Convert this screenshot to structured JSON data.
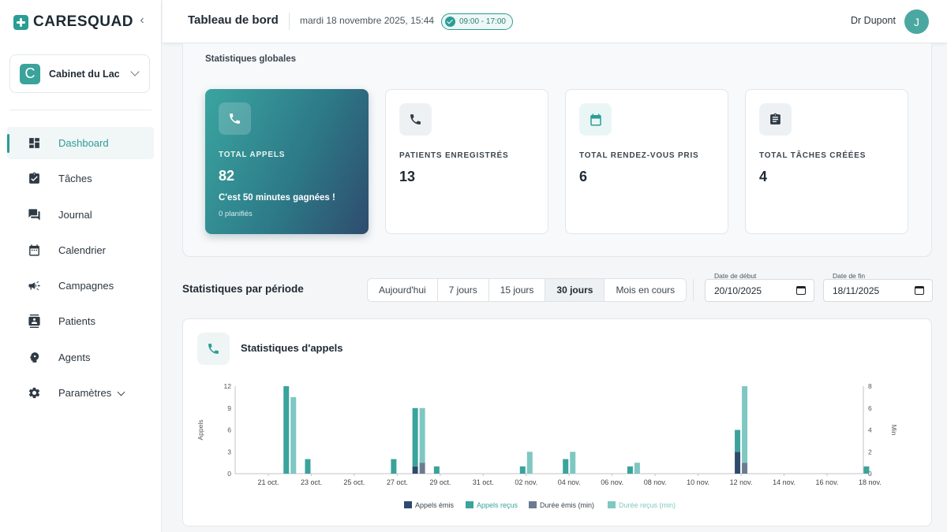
{
  "sidebar": {
    "brand": "CARESQUAD",
    "clinic": {
      "initial": "C",
      "name": "Cabinet du Lac"
    },
    "items": [
      {
        "label": "Dashboard",
        "icon": "dashboard-icon",
        "active": true
      },
      {
        "label": "Tâches",
        "icon": "task-clipboard-icon"
      },
      {
        "label": "Journal",
        "icon": "chat-icon"
      },
      {
        "label": "Calendrier",
        "icon": "calendar-icon"
      },
      {
        "label": "Campagnes",
        "icon": "megaphone-icon"
      },
      {
        "label": "Patients",
        "icon": "contact-card-icon"
      },
      {
        "label": "Agents",
        "icon": "agent-head-icon"
      },
      {
        "label": "Paramètres",
        "icon": "gear-icon"
      }
    ]
  },
  "header": {
    "title": "Tableau de bord",
    "datetime": "mardi 18 novembre 2025, 15:44",
    "hours": "09:00 - 17:00",
    "user": "Dr Dupont",
    "avatar_initial": "J"
  },
  "global_stats": {
    "title": "Statistiques globales",
    "cards": [
      {
        "label": "TOTAL APPELS",
        "value": "82",
        "note": "C'est 50 minutes gagnées !",
        "sub": "0 planifiés",
        "icon": "phone-icon"
      },
      {
        "label": "PATIENTS ENREGISTRÉS",
        "value": "13",
        "icon": "phone-icon"
      },
      {
        "label": "TOTAL RENDEZ-VOUS PRIS",
        "value": "6",
        "icon": "calendar-icon"
      },
      {
        "label": "TOTAL TÂCHES CRÉÉES",
        "value": "4",
        "icon": "clipboard-icon"
      }
    ]
  },
  "period": {
    "title": "Statistiques par période",
    "options": [
      "Aujourd'hui",
      "7 jours",
      "15 jours",
      "30 jours",
      "Mois en cours"
    ],
    "selected": "30 jours",
    "start": {
      "label": "Date de début",
      "value": "20/10/2025"
    },
    "end": {
      "label": "Date de fin",
      "value": "18/11/2025"
    }
  },
  "colors": {
    "accent": "#2a9d96",
    "emis": "#2e4a6e",
    "recus": "#3aa39b",
    "duree_emis": "#6b7b90",
    "duree_recus": "#7fc7c2"
  },
  "chart_data": {
    "type": "bar",
    "title": "Statistiques d'appels",
    "ylabel": "Appels",
    "y2label": "Min",
    "ylim": [
      0,
      12
    ],
    "y2lim": [
      0,
      8
    ],
    "yticks": [
      0,
      3,
      6,
      9,
      12
    ],
    "y2ticks": [
      0,
      2,
      4,
      6,
      8
    ],
    "categories": [
      "21 oct.",
      "22 oct.",
      "23 oct.",
      "24 oct.",
      "25 oct.",
      "26 oct.",
      "27 oct.",
      "28 oct.",
      "29 oct.",
      "30 oct.",
      "31 oct.",
      "01 nov.",
      "02 nov.",
      "03 nov.",
      "04 nov.",
      "05 nov.",
      "06 nov.",
      "07 nov.",
      "08 nov.",
      "09 nov.",
      "10 nov.",
      "11 nov.",
      "12 nov.",
      "13 nov.",
      "14 nov.",
      "15 nov.",
      "16 nov.",
      "17 nov.",
      "18 nov."
    ],
    "tick_labels": [
      "21 oct.",
      "23 oct.",
      "25 oct.",
      "27 oct.",
      "29 oct.",
      "31 oct.",
      "02 nov.",
      "04 nov.",
      "06 nov.",
      "08 nov.",
      "10 nov.",
      "12 nov.",
      "14 nov.",
      "16 nov.",
      "18 nov."
    ],
    "series": [
      {
        "name": "Appels émis",
        "axis": "left",
        "stack": "calls",
        "values": [
          0,
          0,
          0,
          0,
          0,
          0,
          0,
          1,
          0,
          0,
          0,
          0,
          0,
          0,
          0,
          0,
          0,
          0,
          0,
          0,
          0,
          0,
          3,
          0,
          0,
          0,
          0,
          0,
          0
        ]
      },
      {
        "name": "Appels reçus",
        "axis": "left",
        "stack": "calls",
        "values": [
          0,
          12,
          2,
          0,
          0,
          0,
          2,
          8,
          1,
          0,
          0,
          0,
          1,
          0,
          2,
          0,
          0,
          1,
          0,
          0,
          0,
          0,
          3,
          0,
          0,
          0,
          0,
          0,
          1
        ]
      },
      {
        "name": "Durée émis (min)",
        "axis": "right",
        "stack": "duration",
        "values": [
          0,
          0,
          0,
          0,
          0,
          0,
          0,
          1,
          0,
          0,
          0,
          0,
          0,
          0,
          0,
          0,
          0,
          0,
          0,
          0,
          0,
          0,
          1,
          0,
          0,
          0,
          0,
          0,
          0
        ]
      },
      {
        "name": "Durée reçus (min)",
        "axis": "right",
        "stack": "duration",
        "values": [
          0,
          7,
          0,
          0,
          0,
          0,
          0,
          5,
          0,
          0,
          0,
          0,
          2,
          0,
          2,
          0,
          0,
          1,
          0,
          0,
          0,
          0,
          7,
          0,
          0,
          0,
          0,
          0,
          0
        ]
      }
    ],
    "legend": "bottom"
  }
}
